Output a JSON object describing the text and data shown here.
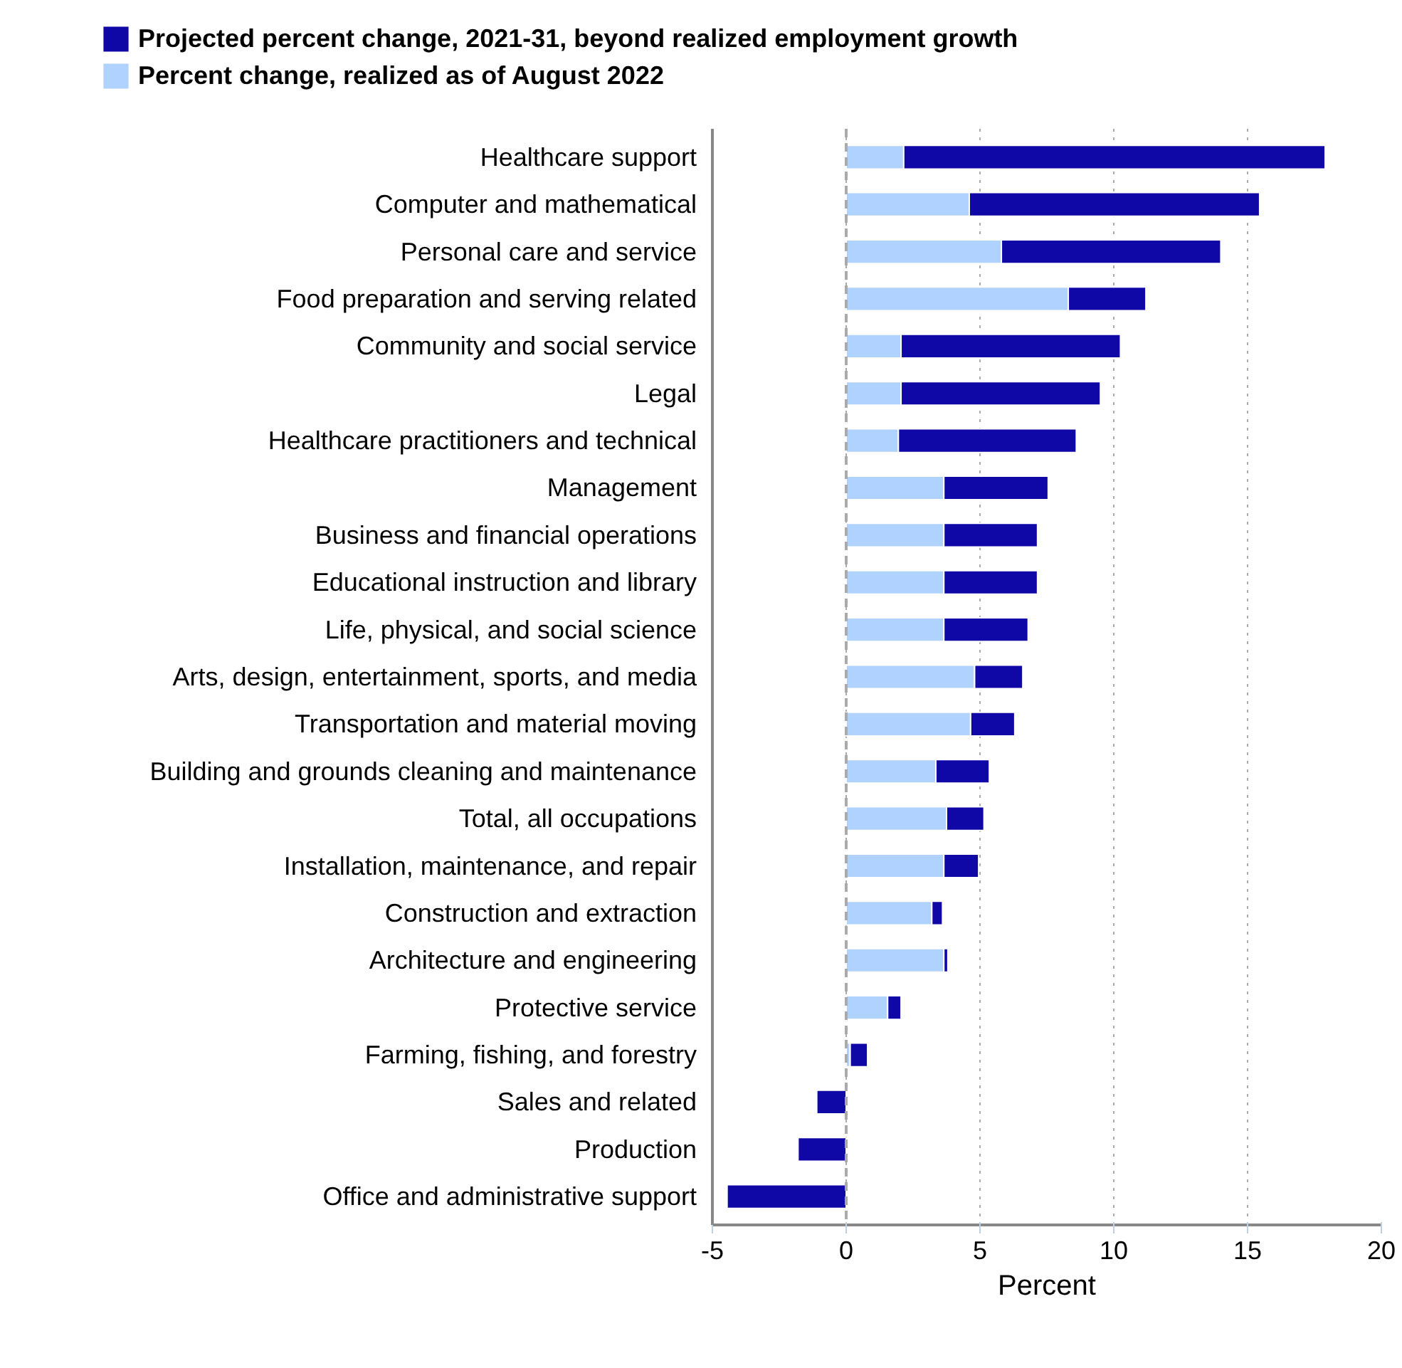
{
  "chart_data": {
    "type": "bar",
    "orientation": "horizontal",
    "stacked": true,
    "categories": [
      "Healthcare support",
      "Computer and mathematical",
      "Personal care and service",
      "Food preparation and serving related",
      "Community and social service",
      "Legal",
      "Healthcare practitioners and technical",
      "Management",
      "Business and financial operations",
      "Educational instruction and library",
      "Life, physical, and social science",
      "Arts, design, entertainment, sports, and media",
      "Transportation and material moving",
      "Building and grounds cleaning and maintenance",
      "Total, all occupations",
      "Installation, maintenance, and repair",
      "Construction and extraction",
      "Architecture and engineering",
      "Protective service",
      "Farming, fishing, and forestry",
      "Sales and related",
      "Production",
      "Office and administrative support"
    ],
    "series": [
      {
        "name": "Percent change, realized as of August 2022",
        "color": "#b0d2fe",
        "values": [
          2.15,
          4.6,
          5.8,
          8.3,
          2.05,
          2.05,
          1.95,
          3.65,
          3.65,
          3.65,
          3.65,
          4.8,
          4.65,
          3.35,
          3.75,
          3.65,
          3.2,
          3.65,
          1.55,
          0.15,
          0,
          0,
          0
        ]
      },
      {
        "name": "Projected percent change, 2021-31, beyond realized employment growth",
        "color": "#1008a6",
        "values": [
          15.75,
          10.85,
          8.2,
          2.9,
          8.2,
          7.45,
          6.65,
          3.9,
          3.5,
          3.5,
          3.15,
          1.8,
          1.65,
          2.0,
          1.4,
          1.3,
          0.4,
          0.15,
          0.5,
          0.65,
          -1.1,
          -1.8,
          -4.45
        ]
      }
    ],
    "xlabel": "Percent",
    "xlim": [
      -5,
      20
    ],
    "xticks": [
      -5,
      0,
      5,
      10,
      15,
      20
    ],
    "grid": "x",
    "legend": "top left",
    "ref_lines": [
      {
        "axis": "x",
        "value": 0,
        "label": null,
        "color": "#aaaaaa",
        "line_style": "dashed"
      }
    ]
  }
}
